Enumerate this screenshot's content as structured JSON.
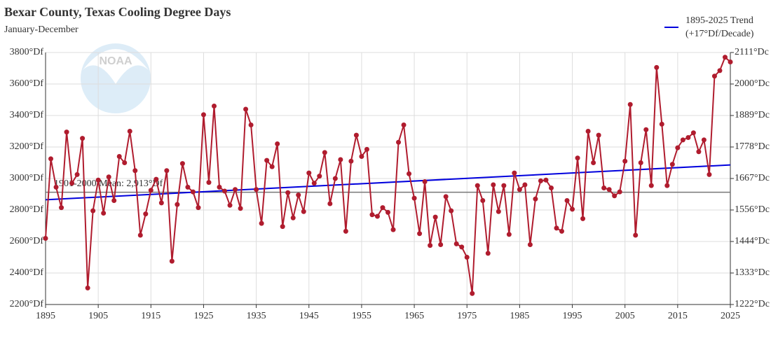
{
  "chart_data": {
    "type": "line",
    "title": "Bexar County, Texas Cooling Degree Days",
    "subtitle": "January-December",
    "logo": "NOAA",
    "x": [
      1895,
      1896,
      1897,
      1898,
      1899,
      1900,
      1901,
      1902,
      1903,
      1904,
      1905,
      1906,
      1907,
      1908,
      1909,
      1910,
      1911,
      1912,
      1913,
      1914,
      1915,
      1916,
      1917,
      1918,
      1919,
      1920,
      1921,
      1922,
      1923,
      1924,
      1925,
      1926,
      1927,
      1928,
      1929,
      1930,
      1931,
      1932,
      1933,
      1934,
      1935,
      1936,
      1937,
      1938,
      1939,
      1940,
      1941,
      1942,
      1943,
      1944,
      1945,
      1946,
      1947,
      1948,
      1949,
      1950,
      1951,
      1952,
      1953,
      1954,
      1955,
      1956,
      1957,
      1958,
      1959,
      1960,
      1961,
      1962,
      1963,
      1964,
      1965,
      1966,
      1967,
      1968,
      1969,
      1970,
      1971,
      1972,
      1973,
      1974,
      1975,
      1976,
      1977,
      1978,
      1979,
      1980,
      1981,
      1982,
      1983,
      1984,
      1985,
      1986,
      1987,
      1988,
      1989,
      1990,
      1991,
      1992,
      1993,
      1994,
      1995,
      1996,
      1997,
      1998,
      1999,
      2000,
      2001,
      2002,
      2003,
      2004,
      2005,
      2006,
      2007,
      2008,
      2009,
      2010,
      2011,
      2012,
      2013,
      2014,
      2015,
      2016,
      2017,
      2018,
      2019,
      2020,
      2021,
      2022,
      2023,
      2024,
      2025
    ],
    "series": [
      {
        "color": "#b01c2e",
        "values": [
          2620,
          3125,
          2945,
          2815,
          3295,
          2970,
          3025,
          3255,
          2305,
          2795,
          2990,
          2780,
          3010,
          2860,
          3140,
          3100,
          3300,
          3050,
          2640,
          2775,
          2925,
          2995,
          2845,
          3050,
          2475,
          2835,
          3095,
          2945,
          2915,
          2815,
          3405,
          2975,
          3460,
          2945,
          2920,
          2830,
          2930,
          2810,
          3440,
          3340,
          2930,
          2715,
          3115,
          3075,
          3220,
          2695,
          2910,
          2750,
          2895,
          2790,
          3035,
          2970,
          3015,
          3165,
          2840,
          3000,
          3120,
          2665,
          3110,
          3275,
          3140,
          3185,
          2770,
          2760,
          2815,
          2785,
          2675,
          3230,
          3340,
          3030,
          2875,
          2650,
          2980,
          2575,
          2755,
          2580,
          2885,
          2795,
          2585,
          2565,
          2500,
          2270,
          2955,
          2860,
          2525,
          2960,
          2790,
          2955,
          2645,
          3035,
          2930,
          2960,
          2580,
          2870,
          2985,
          2990,
          2940,
          2685,
          2665,
          2860,
          2805,
          3130,
          2745,
          3300,
          3100,
          3275,
          2940,
          2930,
          2890,
          2915,
          3110,
          3470,
          2640,
          3100,
          3310,
          2955,
          3705,
          3345,
          2955,
          3090,
          3195,
          3245,
          3260,
          3290,
          3170,
          3245,
          3025,
          3650,
          3685,
          3770,
          3740
        ]
      }
    ],
    "trend": {
      "name": "1895-2025 Trend",
      "note": "(+17°Df/Decade)",
      "color": "#0000dd",
      "x": [
        1895,
        2025
      ],
      "values": [
        2865,
        3086
      ]
    },
    "mean": {
      "label": "1901-2000 Mean: 2,913°Df",
      "value": 2913,
      "color": "#777777"
    },
    "xlim": [
      1895,
      2025
    ],
    "xticks": [
      1895,
      1905,
      1915,
      1925,
      1935,
      1945,
      1955,
      1965,
      1975,
      1985,
      1995,
      2005,
      2015,
      2025
    ],
    "ylim": [
      2200,
      3800
    ],
    "yticks": [
      {
        "value": 2200,
        "label": "2200°Df"
      },
      {
        "value": 2400,
        "label": "2400°Df"
      },
      {
        "value": 2600,
        "label": "2600°Df"
      },
      {
        "value": 2800,
        "label": "2800°Df"
      },
      {
        "value": 3000,
        "label": "3000°Df"
      },
      {
        "value": 3200,
        "label": "3200°Df"
      },
      {
        "value": 3400,
        "label": "3400°Df"
      },
      {
        "value": 3600,
        "label": "3600°Df"
      },
      {
        "value": 3800,
        "label": "3800°Df"
      }
    ],
    "y2lim": [
      1222.2,
      2111.1
    ],
    "y2ticks": [
      {
        "value": 1222.2,
        "label": "1222°Dc"
      },
      {
        "value": 1333.3,
        "label": "1333°Dc"
      },
      {
        "value": 1444.4,
        "label": "1444°Dc"
      },
      {
        "value": 1555.6,
        "label": "1556°Dc"
      },
      {
        "value": 1666.7,
        "label": "1667°Dc"
      },
      {
        "value": 1777.8,
        "label": "1778°Dc"
      },
      {
        "value": 1888.9,
        "label": "1889°Dc"
      },
      {
        "value": 2000,
        "label": "2000°Dc"
      },
      {
        "value": 2111.1,
        "label": "2111°Dc"
      }
    ],
    "grid": true,
    "legend": "top-right"
  }
}
